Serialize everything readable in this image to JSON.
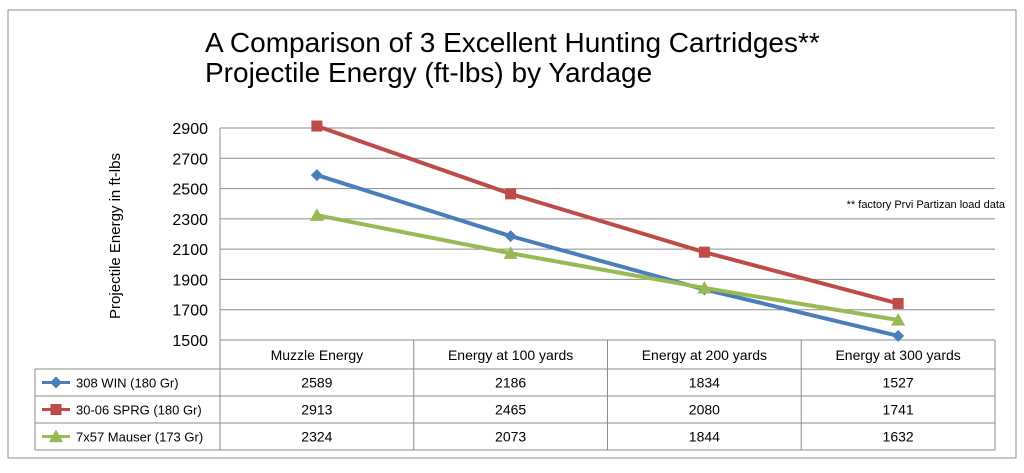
{
  "chart_data": {
    "type": "line",
    "title_line1": "A Comparison of 3 Excellent Hunting Cartridges**",
    "title_line2": "Projectile Energy (ft-lbs) by Yardage",
    "ylabel": "Projectile Energy in ft-lbs",
    "xlabel": "",
    "ylim": [
      1500,
      2900
    ],
    "yticks": [
      1500,
      1700,
      1900,
      2100,
      2300,
      2500,
      2700,
      2900
    ],
    "grid": true,
    "legend": "data-table-below",
    "annotation": "** factory Prvi Partizan load data",
    "categories": [
      "Muzzle Energy",
      "Energy at 100 yards",
      "Energy at 200 yards",
      "Energy at 300 yards"
    ],
    "series": [
      {
        "name": "308 WIN (180 Gr)",
        "color": "#4a7ebb",
        "marker": "diamond",
        "values": [
          2589,
          2186,
          1834,
          1527
        ]
      },
      {
        "name": "30-06 SPRG (180 Gr)",
        "color": "#be4b48",
        "marker": "square",
        "values": [
          2913,
          2465,
          2080,
          1741
        ]
      },
      {
        "name": "7x57 Mauser (173 Gr)",
        "color": "#98b954",
        "marker": "triangle",
        "values": [
          2324,
          2073,
          1844,
          1632
        ]
      }
    ]
  }
}
